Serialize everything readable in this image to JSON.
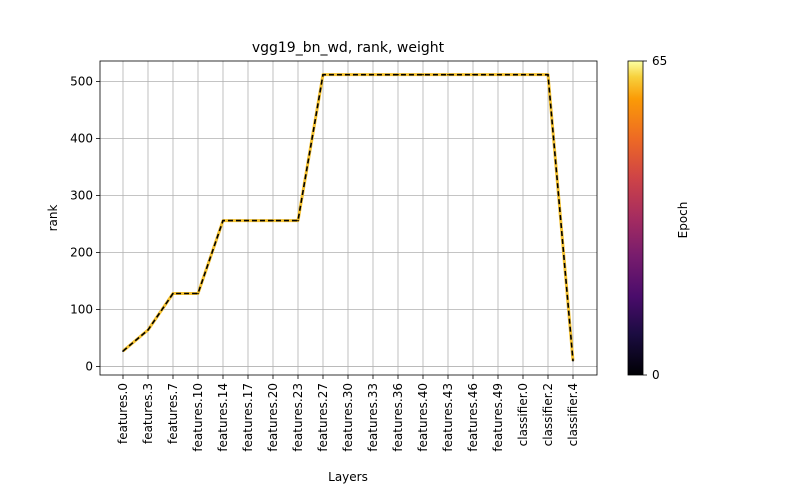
{
  "chart_data": {
    "type": "line",
    "title": "vgg19_bn_wd, rank, weight",
    "xlabel": "Layers",
    "ylabel": "rank",
    "categories": [
      "features.0",
      "features.3",
      "features.7",
      "features.10",
      "features.14",
      "features.17",
      "features.20",
      "features.23",
      "features.27",
      "features.30",
      "features.33",
      "features.36",
      "features.40",
      "features.43",
      "features.46",
      "features.49",
      "classifier.0",
      "classifier.2",
      "classifier.4"
    ],
    "series": [
      {
        "values": [
          27,
          64,
          128,
          128,
          256,
          256,
          256,
          256,
          512,
          512,
          512,
          512,
          512,
          512,
          512,
          512,
          512,
          512,
          10
        ]
      }
    ],
    "ylim": [
      -15,
      536
    ],
    "yticks": [
      0,
      100,
      200,
      300,
      400,
      500
    ],
    "grid": true,
    "colorbar": {
      "label": "Epoch",
      "min_label": "0",
      "max_label": "65",
      "colormap": "inferno"
    },
    "colors": {
      "epoch_line": "#f5c232",
      "final_line": "#000000",
      "grid": "#b0b0b0"
    }
  }
}
